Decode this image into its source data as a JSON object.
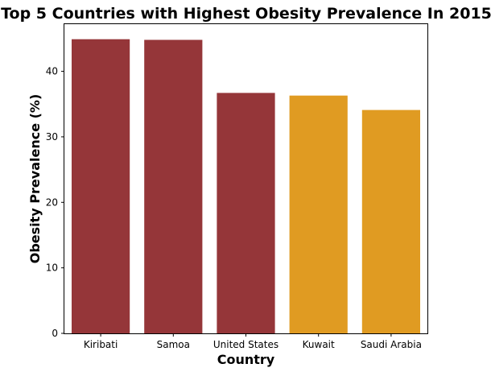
{
  "chart_data": {
    "type": "bar",
    "title": "Top 5 Countries with Highest Obesity Prevalence In 2015",
    "xlabel": "Country",
    "ylabel": "Obesity Prevalence (%)",
    "categories": [
      "Kiribati",
      "Samoa",
      "United States",
      "Kuwait",
      "Saudi Arabia"
    ],
    "values": [
      44.9,
      44.8,
      36.7,
      36.3,
      34.1
    ],
    "colors": [
      "#953639",
      "#953639",
      "#953639",
      "#e09b22",
      "#e09b22"
    ],
    "ylim": [
      0,
      47.2
    ],
    "yticks": [
      0,
      10,
      20,
      30,
      40
    ],
    "grid": false,
    "legend": "none"
  }
}
